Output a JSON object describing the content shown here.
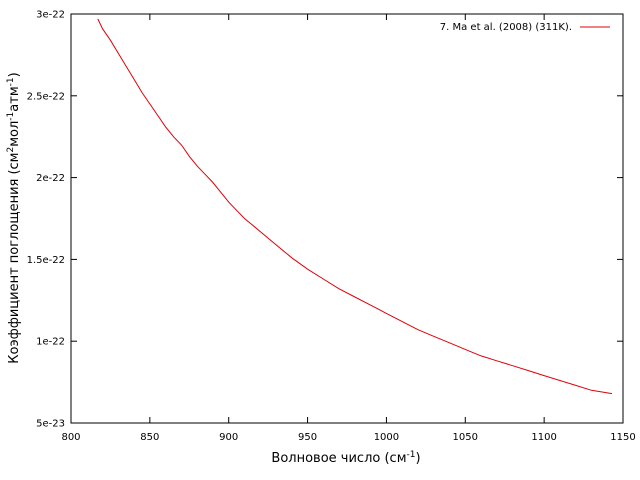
{
  "chart_data": {
    "type": "line",
    "title": "",
    "xlabel": "Волновое число (см",
    "xlabel_sup": "-1",
    "xlabel_tail": ")",
    "ylabel_parts": [
      "Коэффициент поглощения (см",
      "2",
      "мол",
      "-1",
      "атм",
      "-1",
      ")"
    ],
    "xlim": [
      800,
      1150
    ],
    "ylim": [
      5e-23,
      3e-22
    ],
    "x_ticks": [
      800,
      850,
      900,
      950,
      1000,
      1050,
      1100,
      1150
    ],
    "y_ticks": [
      5e-23,
      1e-22,
      1.5e-22,
      2e-22,
      2.5e-22,
      3e-22
    ],
    "x_tick_labels": [
      "800",
      "850",
      "900",
      "950",
      "1000",
      "1050",
      "1100",
      "1150"
    ],
    "y_tick_labels": [
      "5e-23",
      "1e-22",
      "1.5e-22",
      "2e-22",
      "2.5e-22",
      "3e-22"
    ],
    "grid": false,
    "legend_position": "top-right",
    "series": [
      {
        "name": "7. Ma et al. (2008) (311K).",
        "color": "#e0000a",
        "x": [
          817,
          820,
          825,
          830,
          835,
          840,
          845,
          850,
          855,
          860,
          865,
          870,
          875,
          880,
          885,
          890,
          895,
          900,
          905,
          910,
          915,
          920,
          930,
          940,
          950,
          960,
          970,
          980,
          990,
          1000,
          1010,
          1020,
          1030,
          1040,
          1050,
          1060,
          1070,
          1080,
          1090,
          1100,
          1110,
          1120,
          1130,
          1143
        ],
        "y": [
          2.97e-22,
          2.91e-22,
          2.84e-22,
          2.76e-22,
          2.68e-22,
          2.6e-22,
          2.52e-22,
          2.45e-22,
          2.38e-22,
          2.31e-22,
          2.25e-22,
          2.2e-22,
          2.13e-22,
          2.07e-22,
          2.02e-22,
          1.97e-22,
          1.91e-22,
          1.85e-22,
          1.8e-22,
          1.75e-22,
          1.71e-22,
          1.67e-22,
          1.59e-22,
          1.51e-22,
          1.44e-22,
          1.38e-22,
          1.32e-22,
          1.27e-22,
          1.22e-22,
          1.17e-22,
          1.12e-22,
          1.07e-22,
          1.03e-22,
          9.9e-23,
          9.5e-23,
          9.1e-23,
          8.8e-23,
          8.5e-23,
          8.2e-23,
          7.9e-23,
          7.6e-23,
          7.3e-23,
          7e-23,
          6.8e-23
        ]
      }
    ]
  }
}
